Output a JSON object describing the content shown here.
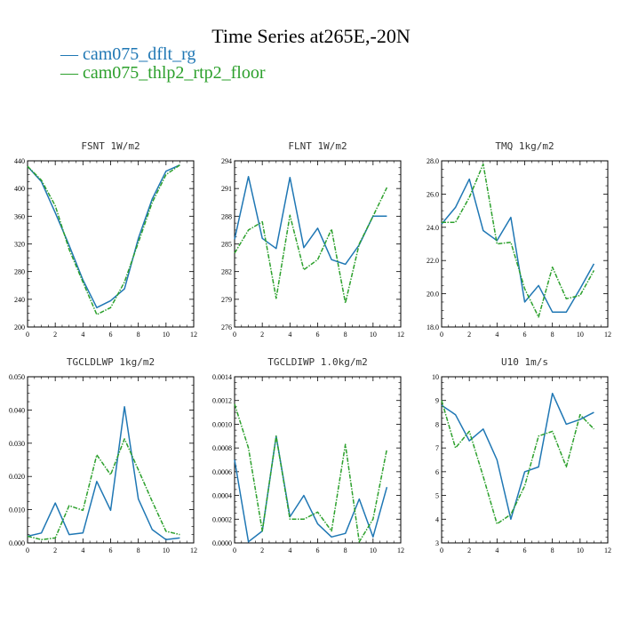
{
  "title": "Time Series at265E,-20N",
  "legend": [
    {
      "name": "cam075_dflt_rg",
      "color": "#1f77b4"
    },
    {
      "name": "cam075_thlp2_rtp2_floor",
      "color": "#2ca02c"
    }
  ],
  "chart_data": [
    {
      "type": "line",
      "title": "FSNT   1W/m2",
      "x": [
        0,
        1,
        2,
        3,
        4,
        5,
        6,
        7,
        8,
        9,
        10,
        11
      ],
      "xlim": [
        0,
        12
      ],
      "xticks": [
        "0",
        "2",
        "4",
        "6",
        "8",
        "10",
        "12"
      ],
      "ylim": [
        200,
        440
      ],
      "yticks": [
        "200",
        "240",
        "280",
        "320",
        "360",
        "400",
        "440"
      ],
      "series": [
        {
          "name": "cam075_dflt_rg",
          "values": [
            432,
            410,
            365,
            318,
            268,
            228,
            238,
            255,
            328,
            385,
            425,
            434
          ]
        },
        {
          "name": "cam075_thlp2_rtp2_floor",
          "values": [
            432,
            412,
            375,
            312,
            265,
            218,
            228,
            265,
            322,
            380,
            420,
            434
          ]
        }
      ]
    },
    {
      "type": "line",
      "title": "FLNT   1W/m2",
      "x": [
        0,
        1,
        2,
        3,
        4,
        5,
        6,
        7,
        8,
        9,
        10,
        11
      ],
      "xlim": [
        0,
        12
      ],
      "xticks": [
        "0",
        "2",
        "4",
        "6",
        "8",
        "10",
        "12"
      ],
      "ylim": [
        276,
        294
      ],
      "yticks": [
        "276",
        "279",
        "282",
        "285",
        "288",
        "291",
        "294"
      ],
      "series": [
        {
          "name": "cam075_dflt_rg",
          "values": [
            285.5,
            292.3,
            285.6,
            284.5,
            292.2,
            284.6,
            286.7,
            283.3,
            282.8,
            284.9,
            288,
            288
          ]
        },
        {
          "name": "cam075_thlp2_rtp2_floor",
          "values": [
            284,
            286.5,
            287.4,
            279.1,
            288.1,
            282.2,
            283.3,
            286.6,
            278.6,
            285,
            288,
            291.1
          ]
        }
      ]
    },
    {
      "type": "line",
      "title": "TMQ   1kg/m2",
      "x": [
        0,
        1,
        2,
        3,
        4,
        5,
        6,
        7,
        8,
        9,
        10,
        11
      ],
      "xlim": [
        0,
        12
      ],
      "xticks": [
        "0",
        "2",
        "4",
        "6",
        "8",
        "10",
        "12"
      ],
      "ylim": [
        18,
        28
      ],
      "yticks": [
        "18.0",
        "20.0",
        "22.0",
        "24.0",
        "26.0",
        "28.0"
      ],
      "series": [
        {
          "name": "cam075_dflt_rg",
          "values": [
            24.2,
            25.2,
            26.9,
            23.8,
            23.2,
            24.6,
            19.5,
            20.5,
            18.9,
            18.9,
            20.3,
            21.8
          ]
        },
        {
          "name": "cam075_thlp2_rtp2_floor",
          "values": [
            24.3,
            24.3,
            25.8,
            27.8,
            23,
            23.1,
            20.3,
            18.6,
            21.6,
            19.7,
            19.9,
            21.4
          ]
        }
      ]
    },
    {
      "type": "line",
      "title": "TGCLDLWP   1kg/m2",
      "x": [
        0,
        1,
        2,
        3,
        4,
        5,
        6,
        7,
        8,
        9,
        10,
        11
      ],
      "xlim": [
        0,
        12
      ],
      "xticks": [
        "0",
        "2",
        "4",
        "6",
        "8",
        "10",
        "12"
      ],
      "ylim": [
        0,
        0.05
      ],
      "yticks": [
        "0.000",
        "0.010",
        "0.020",
        "0.030",
        "0.040",
        "0.050"
      ],
      "series": [
        {
          "name": "cam075_dflt_rg",
          "values": [
            0.002,
            0.003,
            0.012,
            0.0025,
            0.003,
            0.0185,
            0.0098,
            0.041,
            0.0132,
            0.004,
            0.001,
            0.0015
          ]
        },
        {
          "name": "cam075_thlp2_rtp2_floor",
          "values": [
            0.002,
            0.001,
            0.0015,
            0.0112,
            0.0098,
            0.0265,
            0.0205,
            0.0313,
            0.022,
            0.0125,
            0.0035,
            0.0025
          ]
        }
      ]
    },
    {
      "type": "line",
      "title": "TGCLDIWP   1.0kg/m2",
      "x": [
        0,
        1,
        2,
        3,
        4,
        5,
        6,
        7,
        8,
        9,
        10,
        11
      ],
      "xlim": [
        0,
        12
      ],
      "xticks": [
        "0",
        "2",
        "4",
        "6",
        "8",
        "10",
        "12"
      ],
      "ylim": [
        0,
        0.0014
      ],
      "yticks": [
        "0.0000",
        "0.0002",
        "0.0004",
        "0.0006",
        "0.0008",
        "0.0010",
        "0.0012",
        "0.0014"
      ],
      "series": [
        {
          "name": "cam075_dflt_rg",
          "values": [
            0.0007,
            1e-05,
            0.0001,
            0.0009,
            0.00022,
            0.0004,
            0.00016,
            5e-05,
            8e-05,
            0.00037,
            5e-05,
            0.00047
          ]
        },
        {
          "name": "cam075_thlp2_rtp2_floor",
          "values": [
            0.00117,
            0.0008,
            0.0001,
            0.0009,
            0.0002,
            0.0002,
            0.00026,
            0.0001,
            0.00083,
            1e-05,
            0.0002,
            0.00079
          ]
        }
      ]
    },
    {
      "type": "line",
      "title": "U10   1m/s",
      "x": [
        0,
        1,
        2,
        3,
        4,
        5,
        6,
        7,
        8,
        9,
        10,
        11
      ],
      "xlim": [
        0,
        12
      ],
      "xticks": [
        "0",
        "2",
        "4",
        "6",
        "8",
        "10",
        "12"
      ],
      "ylim": [
        3,
        10
      ],
      "yticks": [
        "3",
        "4",
        "5",
        "6",
        "7",
        "8",
        "9",
        "10"
      ],
      "series": [
        {
          "name": "cam075_dflt_rg",
          "values": [
            8.8,
            8.4,
            7.3,
            7.8,
            6.5,
            4,
            6,
            6.2,
            9.3,
            8,
            8.2,
            8.5
          ]
        },
        {
          "name": "cam075_thlp2_rtp2_floor",
          "values": [
            9,
            7,
            7.7,
            5.8,
            3.8,
            4.2,
            5.4,
            7.5,
            7.7,
            6.2,
            8.4,
            7.8
          ]
        }
      ]
    }
  ]
}
